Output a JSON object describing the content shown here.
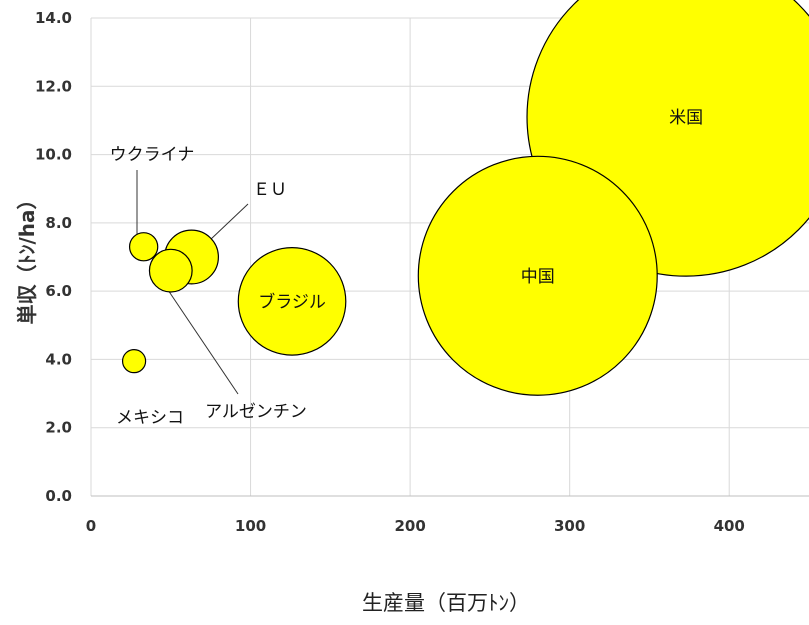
{
  "chart_data": {
    "type": "scatter",
    "xlabel": "生産量（百万ﾄﾝ）",
    "ylabel": "単収（ﾄﾝ/ha）",
    "xlim": [
      0,
      450
    ],
    "ylim": [
      0,
      14
    ],
    "x_ticks": [
      "0",
      "100",
      "200",
      "300",
      "400"
    ],
    "y_ticks": [
      "0.0",
      "2.0",
      "4.0",
      "6.0",
      "8.0",
      "10.0",
      "12.0",
      "14.0"
    ],
    "grid": true,
    "bubble_color": "#ffff00",
    "bubble_stroke": "#000000",
    "points": [
      {
        "label": "米国",
        "x": 373,
        "y": 11.1,
        "size": 373
      },
      {
        "label": "中国",
        "x": 280,
        "y": 6.45,
        "size": 280
      },
      {
        "label": "ブラジル",
        "x": 126,
        "y": 5.7,
        "size": 126
      },
      {
        "label": "ＥＵ",
        "x": 63,
        "y": 7.0,
        "size": 63
      },
      {
        "label": "アルゼンチン",
        "x": 50,
        "y": 6.6,
        "size": 50
      },
      {
        "label": "ウクライナ",
        "x": 33,
        "y": 7.3,
        "size": 33
      },
      {
        "label": "メキシコ",
        "x": 27,
        "y": 3.95,
        "size": 27
      }
    ]
  }
}
